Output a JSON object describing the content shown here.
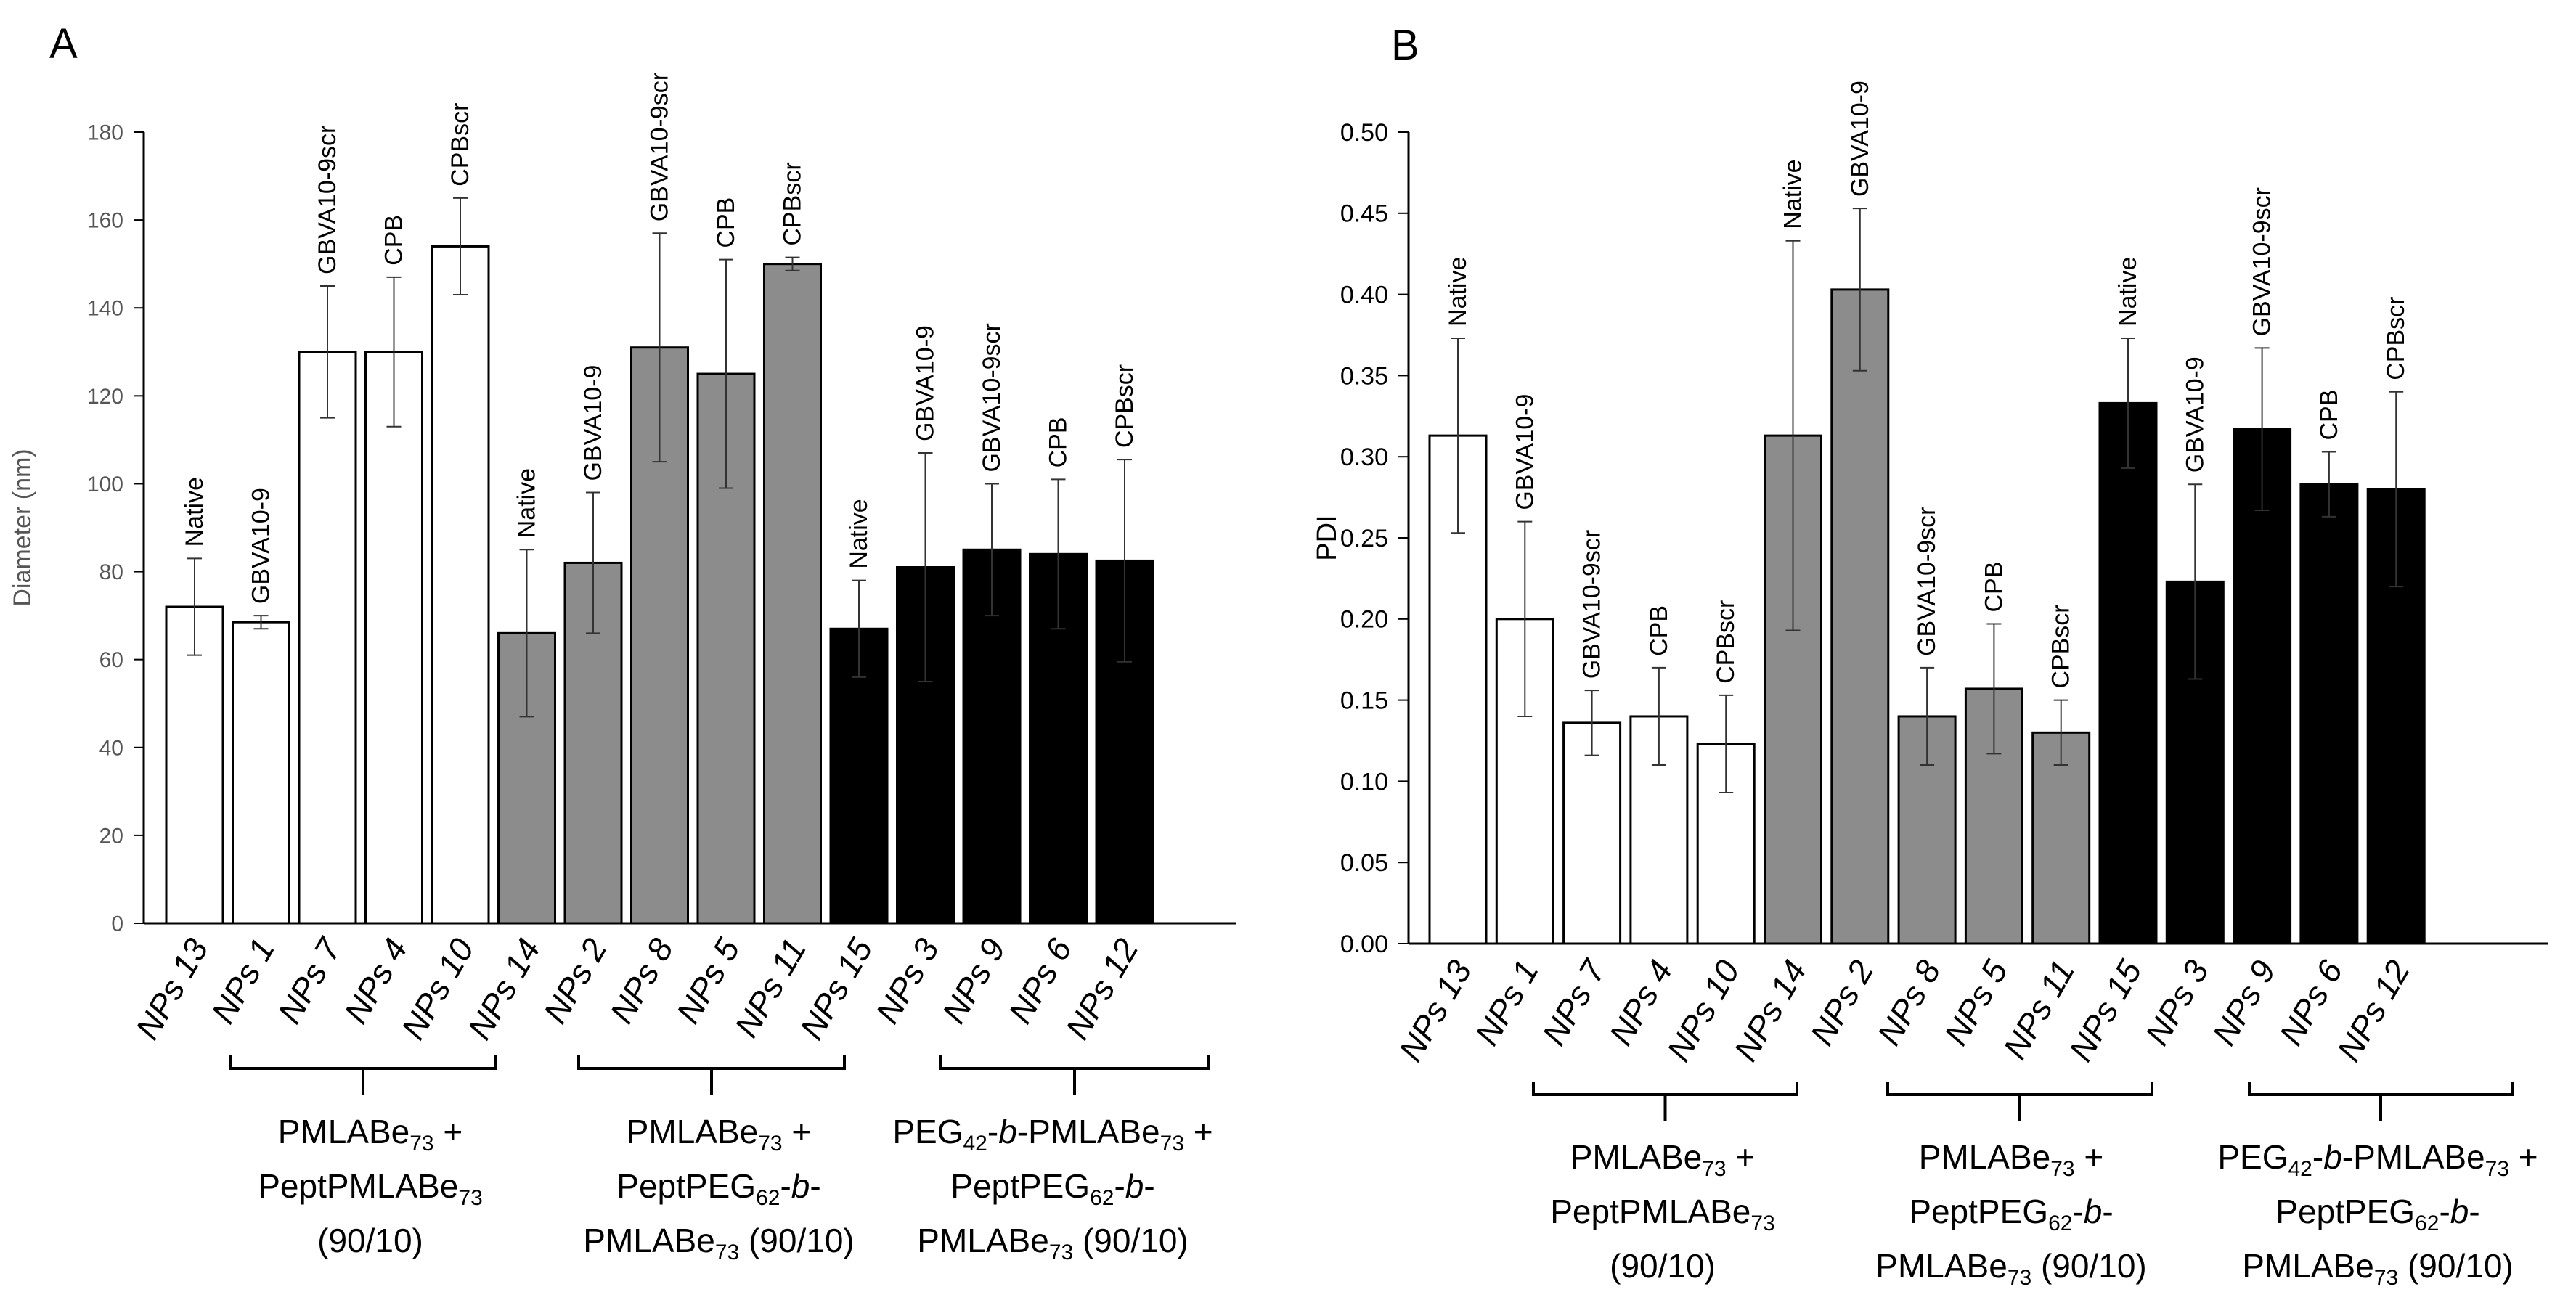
{
  "chart_data": [
    {
      "type": "bar",
      "panel_label": "A",
      "ylabel": "Diameter (nm)",
      "xlabel": "",
      "ylim": [
        0,
        180
      ],
      "yticks": [
        "0",
        "20",
        "40",
        "60",
        "80",
        "100",
        "120",
        "140",
        "160",
        "180"
      ],
      "grid": false,
      "categories": [
        "NPs 13",
        "NPs 1",
        "NPs 7",
        "NPs 4",
        "NPs 10",
        "NPs 14",
        "NPs 2",
        "NPs 8",
        "NPs 5",
        "NPs 11",
        "NPs 15",
        "NPs 3",
        "NPs 9",
        "NPs 6",
        "NPs 12"
      ],
      "values": [
        72,
        68.5,
        130,
        130,
        154,
        66,
        82,
        131,
        125,
        150,
        67,
        81,
        85,
        84,
        82.5
      ],
      "errors": [
        11,
        1.5,
        15,
        17,
        11,
        19,
        16,
        26,
        26,
        1.5,
        11,
        26,
        15,
        17,
        23
      ],
      "annotations": [
        "Native",
        "GBVA10-9",
        "GBVA10-9scr",
        "CPB",
        "CPBscr",
        "Native",
        "GBVA10-9",
        "GBVA10-9scr",
        "CPB",
        "CPBscr",
        "Native",
        "GBVA10-9",
        "GBVA10-9scr",
        "CPB",
        "CPBscr"
      ],
      "groups": [
        {
          "fill": "white",
          "members": [
            0,
            4
          ],
          "label_lines": [
            "PMLABe73 +",
            "PeptPMLABe73",
            "(90/10)"
          ]
        },
        {
          "fill": "gray",
          "members": [
            5,
            9
          ],
          "label_lines": [
            "PMLABe73 +",
            "PeptPEG62-b-",
            "PMLABe73 (90/10)"
          ]
        },
        {
          "fill": "black",
          "members": [
            10,
            14
          ],
          "label_lines": [
            "PEG42-b-PMLABe73 +",
            "PeptPEG62-b-",
            "PMLABe73 (90/10)"
          ]
        }
      ]
    },
    {
      "type": "bar",
      "panel_label": "B",
      "ylabel": "PDI",
      "xlabel": "",
      "ylim": [
        0,
        0.5
      ],
      "yticks": [
        "0.00",
        "0.05",
        "0.10",
        "0.15",
        "0.20",
        "0.25",
        "0.30",
        "0.35",
        "0.40",
        "0.45",
        "0.50"
      ],
      "grid": false,
      "categories": [
        "NPs 13",
        "NPs 1",
        "NPs 7",
        "NPs 4",
        "NPs 10",
        "NPs 14",
        "NPs 2",
        "NPs 8",
        "NPs 5",
        "NPs 11",
        "NPs 15",
        "NPs 3",
        "NPs 9",
        "NPs 6",
        "NPs 12"
      ],
      "values": [
        0.313,
        0.2,
        0.136,
        0.14,
        0.123,
        0.313,
        0.403,
        0.14,
        0.157,
        0.13,
        0.333,
        0.223,
        0.317,
        0.283,
        0.28
      ],
      "errors": [
        0.06,
        0.06,
        0.02,
        0.03,
        0.03,
        0.12,
        0.05,
        0.03,
        0.04,
        0.02,
        0.04,
        0.06,
        0.05,
        0.02,
        0.06
      ],
      "annotations": [
        "Native",
        "GBVA10-9",
        "GBVA10-9scr",
        "CPB",
        "CPBscr",
        "Native",
        "GBVA10-9",
        "GBVA10-9scr",
        "CPB",
        "CPBscr",
        "Native",
        "GBVA10-9",
        "GBVA10-9scr",
        "CPB",
        "CPBscr"
      ],
      "groups": [
        {
          "fill": "white",
          "members": [
            0,
            4
          ],
          "label_lines": [
            "PMLABe73 +",
            "PeptPMLABe73",
            "(90/10)"
          ]
        },
        {
          "fill": "gray",
          "members": [
            5,
            9
          ],
          "label_lines": [
            "PMLABe73 +",
            "PeptPEG62-b-",
            "PMLABe73 (90/10)"
          ]
        },
        {
          "fill": "black",
          "members": [
            10,
            14
          ],
          "label_lines": [
            "PEG42-b-PMLABe73 +",
            "PeptPEG62-b-",
            "PMLABe73 (90/10)"
          ]
        }
      ]
    }
  ],
  "group_labels": {
    "peg": "PEG",
    "n42": "42",
    "b": "b",
    "pmlabe": "PMLABe",
    "n73": "73",
    "pept_pmlabe": "PeptPMLABe",
    "pept_peg": "PeptPEG",
    "n62": "62",
    "plus": " +",
    "dash": "-",
    "ratio": "(90/10)",
    "ratio_inline": " (90/10)"
  },
  "colors": {
    "white_fill": "#ffffff",
    "gray_fill": "#8c8c8c",
    "black_fill": "#000000",
    "axis": "#000000",
    "tick_text_a": "#555555",
    "tick_text_b": "#000000"
  }
}
